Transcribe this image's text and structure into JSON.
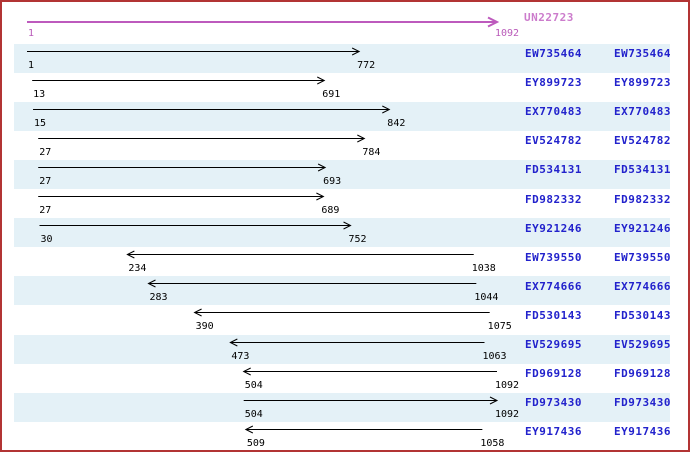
{
  "frame": {
    "border_color": "#b23434",
    "background": "#ffffff"
  },
  "reference": {
    "name": "UN22723",
    "start": 1,
    "end": 1092,
    "start_label": "1",
    "end_label": "1092",
    "direction": "forward",
    "arrow_color": "#bd5abd",
    "coord_color": "#b95ab9",
    "name_color": "#cc7ccc"
  },
  "colors": {
    "band": "#e4f1f7",
    "row_alt": "#ffffff",
    "accession_link": "#2222cc",
    "alignment_arrow": "#000000",
    "coord_text": "#000000"
  },
  "alignments": [
    {
      "id": "EW735464",
      "start": 1,
      "end": 772,
      "direction": "forward"
    },
    {
      "id": "EY899723",
      "start": 13,
      "end": 691,
      "direction": "forward"
    },
    {
      "id": "EX770483",
      "start": 15,
      "end": 842,
      "direction": "forward"
    },
    {
      "id": "EV524782",
      "start": 27,
      "end": 784,
      "direction": "forward"
    },
    {
      "id": "FD534131",
      "start": 27,
      "end": 693,
      "direction": "forward"
    },
    {
      "id": "FD982332",
      "start": 27,
      "end": 689,
      "direction": "forward"
    },
    {
      "id": "EY921246",
      "start": 30,
      "end": 752,
      "direction": "forward"
    },
    {
      "id": "EW739550",
      "start": 234,
      "end": 1038,
      "direction": "reverse"
    },
    {
      "id": "EX774666",
      "start": 283,
      "end": 1044,
      "direction": "reverse"
    },
    {
      "id": "FD530143",
      "start": 390,
      "end": 1075,
      "direction": "reverse"
    },
    {
      "id": "EV529695",
      "start": 473,
      "end": 1063,
      "direction": "reverse"
    },
    {
      "id": "FD969128",
      "start": 504,
      "end": 1092,
      "direction": "reverse"
    },
    {
      "id": "FD973430",
      "start": 504,
      "end": 1092,
      "direction": "forward"
    },
    {
      "id": "EY917436",
      "start": 509,
      "end": 1058,
      "direction": "reverse"
    }
  ],
  "chart_data": {
    "type": "bar",
    "subtype": "horizontal-range-arrows",
    "title": "UN22723",
    "xlabel": "",
    "ylabel": "",
    "x_axis": {
      "min": 1,
      "max": 1092,
      "grid": false
    },
    "legend": "none",
    "reference": {
      "name": "UN22723",
      "start": 1,
      "end": 1092,
      "direction": "forward"
    },
    "series": [
      {
        "name": "EW735464",
        "start": 1,
        "end": 772,
        "direction": "forward"
      },
      {
        "name": "EY899723",
        "start": 13,
        "end": 691,
        "direction": "forward"
      },
      {
        "name": "EX770483",
        "start": 15,
        "end": 842,
        "direction": "forward"
      },
      {
        "name": "EV524782",
        "start": 27,
        "end": 784,
        "direction": "forward"
      },
      {
        "name": "FD534131",
        "start": 27,
        "end": 693,
        "direction": "forward"
      },
      {
        "name": "FD982332",
        "start": 27,
        "end": 689,
        "direction": "forward"
      },
      {
        "name": "EY921246",
        "start": 30,
        "end": 752,
        "direction": "forward"
      },
      {
        "name": "EW739550",
        "start": 234,
        "end": 1038,
        "direction": "reverse"
      },
      {
        "name": "EX774666",
        "start": 283,
        "end": 1044,
        "direction": "reverse"
      },
      {
        "name": "FD530143",
        "start": 390,
        "end": 1075,
        "direction": "reverse"
      },
      {
        "name": "EV529695",
        "start": 473,
        "end": 1063,
        "direction": "reverse"
      },
      {
        "name": "FD969128",
        "start": 504,
        "end": 1092,
        "direction": "reverse"
      },
      {
        "name": "FD973430",
        "start": 504,
        "end": 1092,
        "direction": "forward"
      },
      {
        "name": "EY917436",
        "start": 509,
        "end": 1058,
        "direction": "reverse"
      }
    ]
  }
}
